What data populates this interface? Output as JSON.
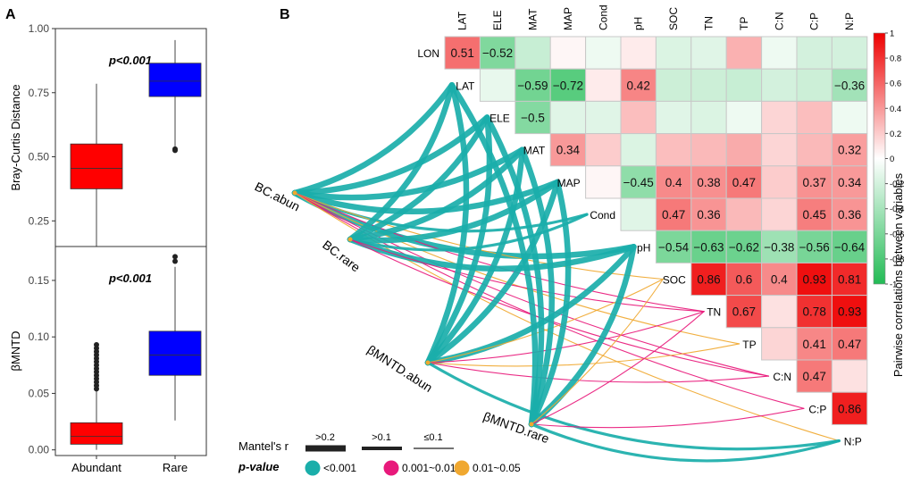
{
  "chart_data": [
    {
      "type": "box",
      "panel": "A",
      "categories": [
        "Abundant",
        "Rare"
      ],
      "colors": [
        "#ff0000",
        "#0000ff"
      ],
      "subplots": [
        {
          "ylabel": "Bray-Curtis Distance",
          "ylim": [
            0.15,
            1.0
          ],
          "yticks": [
            "0.25",
            "0.50",
            "0.75",
            "1.00"
          ],
          "annotation": "p<0.001",
          "boxes": [
            {
              "min": 0.15,
              "q1": 0.375,
              "median": 0.455,
              "q3": 0.55,
              "max": 0.785,
              "outliers": []
            },
            {
              "min": 0.53,
              "q1": 0.735,
              "median": 0.795,
              "q3": 0.865,
              "max": 0.955,
              "outliers": [
                0.525,
                0.53
              ]
            }
          ]
        },
        {
          "ylabel": "βMNTD",
          "ylim": [
            -0.005,
            0.18
          ],
          "yticks": [
            "0.00",
            "0.05",
            "0.10",
            "0.15"
          ],
          "annotation": "p<0.001",
          "boxes": [
            {
              "min": 0.0,
              "q1": 0.005,
              "median": 0.012,
              "q3": 0.024,
              "max": 0.052,
              "outliers": [
                0.054,
                0.057,
                0.06,
                0.063,
                0.066,
                0.069,
                0.072,
                0.075,
                0.078,
                0.081,
                0.084,
                0.087,
                0.09,
                0.093
              ]
            },
            {
              "min": 0.026,
              "q1": 0.066,
              "median": 0.084,
              "q3": 0.105,
              "max": 0.162,
              "outliers": [
                0.167,
                0.171
              ]
            }
          ]
        }
      ]
    },
    {
      "type": "heatmap",
      "panel": "B",
      "title": "Pairwise correlations between variables",
      "variables": [
        "LON",
        "LAT",
        "ELE",
        "MAT",
        "MAP",
        "Cond",
        "pH",
        "SOC",
        "TN",
        "TP",
        "C:N",
        "C:P",
        "N:P"
      ],
      "column_labels": [
        "LAT",
        "ELE",
        "MAT",
        "MAP",
        "Cond",
        "pH",
        "SOC",
        "TN",
        "TP",
        "C:N",
        "C:P",
        "N:P"
      ],
      "rows": [
        {
          "label": "LON",
          "values": [
            0.51,
            -0.52,
            -0.2,
            0.02,
            -0.05,
            0.05,
            -0.12,
            -0.1,
            0.25,
            -0.05,
            -0.15,
            -0.15
          ],
          "shown": [
            "0.51",
            "-0.52",
            "",
            "",
            "",
            "",
            "",
            "",
            "",
            "",
            "",
            ""
          ]
        },
        {
          "label": "LAT",
          "values": [
            -0.07,
            -0.59,
            -0.72,
            0.05,
            0.42,
            -0.18,
            -0.18,
            -0.2,
            -0.15,
            -0.18,
            -0.36
          ],
          "shown": [
            "",
            "-0.59",
            "-0.72",
            "",
            "0.42",
            "",
            "",
            "",
            "",
            "",
            "-0.36"
          ]
        },
        {
          "label": "ELE",
          "values": [
            -0.5,
            -0.1,
            -0.1,
            0.2,
            -0.1,
            -0.12,
            -0.05,
            0.12,
            0.2,
            -0.05
          ],
          "shown": [
            "-0.5",
            "",
            "",
            "",
            "",
            "",
            "",
            "",
            "",
            ""
          ]
        },
        {
          "label": "MAT",
          "values": [
            0.34,
            0.15,
            -0.12,
            0.2,
            0.22,
            0.27,
            0.12,
            0.22,
            0.32
          ],
          "shown": [
            "0.34",
            "",
            "",
            "",
            "",
            "",
            "",
            "",
            "0.32"
          ]
        },
        {
          "label": "MAP",
          "values": [
            0.02,
            -0.45,
            0.4,
            0.38,
            0.47,
            0.15,
            0.37,
            0.34
          ],
          "shown": [
            "",
            "-0.45",
            "0.4",
            "0.38",
            "0.47",
            "",
            "0.37",
            "0.34"
          ]
        },
        {
          "label": "Cond",
          "values": [
            -0.1,
            0.47,
            0.36,
            0.22,
            0.12,
            0.45,
            0.36
          ],
          "shown": [
            "",
            "0.47",
            "0.36",
            "",
            "",
            "0.45",
            "0.36"
          ]
        },
        {
          "label": "pH",
          "values": [
            -0.54,
            -0.63,
            -0.62,
            -0.38,
            -0.56,
            -0.64
          ],
          "shown": [
            "-0.54",
            "-0.63",
            "-0.62",
            "-0.38",
            "-0.56",
            "-0.64"
          ]
        },
        {
          "label": "SOC",
          "values": [
            0.86,
            0.6,
            0.4,
            0.93,
            0.81
          ],
          "shown": [
            "0.86",
            "0.6",
            "0.4",
            "0.93",
            "0.81"
          ]
        },
        {
          "label": "TN",
          "values": [
            0.67,
            0.08,
            0.78,
            0.93
          ],
          "shown": [
            "0.67",
            "",
            "0.78",
            "0.93"
          ]
        },
        {
          "label": "TP",
          "values": [
            0.12,
            0.41,
            0.47
          ],
          "shown": [
            "",
            "0.41",
            "0.47"
          ]
        },
        {
          "label": "C:N",
          "values": [
            0.47,
            0.08
          ],
          "shown": [
            "0.47",
            ""
          ]
        },
        {
          "label": "C:P",
          "values": [
            0.86
          ],
          "shown": [
            "0.86"
          ]
        }
      ],
      "diagonal_labels": [
        "LON",
        "LAT",
        "ELE",
        "MAT",
        "MAP",
        "Cond",
        "pH",
        "SOC",
        "TN",
        "TP",
        "C:N",
        "C:P",
        "N:P"
      ],
      "colorbar": {
        "range": [
          -1,
          1
        ],
        "ticks": [
          "1",
          "0.8",
          "0.6",
          "0.4",
          "0.2",
          "0",
          "-0.2",
          "-0.4",
          "-0.6",
          "-0.8",
          "-1"
        ],
        "colors": {
          "pos": "#ee0000",
          "mid": "#ffffff",
          "neg": "#22bb55"
        }
      },
      "mantel": {
        "nodes": [
          "BC.abun",
          "BC.rare",
          "βMNTD.abun",
          "βMNTD.rare"
        ],
        "legend_title_r": "Mantel's r",
        "legend_title_p": "p-value",
        "r_classes": [
          ">0.2",
          ">0.1",
          "≤0.1"
        ],
        "p_classes": [
          {
            "label": "<0.001",
            "color": "#1aaeaa"
          },
          {
            "label": "0.001~0.01",
            "color": "#e8197b"
          },
          {
            "label": "0.01~0.05",
            "color": "#f0a830"
          }
        ],
        "links": [
          {
            "from": "BC.abun",
            "to": "LAT",
            "r": ">0.2",
            "p": "<0.001"
          },
          {
            "from": "BC.abun",
            "to": "ELE",
            "r": ">0.2",
            "p": "<0.001"
          },
          {
            "from": "BC.abun",
            "to": "MAT",
            "r": ">0.2",
            "p": "<0.001"
          },
          {
            "from": "BC.abun",
            "to": "MAP",
            "r": ">0.2",
            "p": "<0.001"
          },
          {
            "from": "BC.abun",
            "to": "Cond",
            "r": ">0.1",
            "p": "<0.001"
          },
          {
            "from": "BC.abun",
            "to": "pH",
            "r": ">0.2",
            "p": "<0.001"
          },
          {
            "from": "BC.abun",
            "to": "SOC",
            "r": "≤0.1",
            "p": "0.01~0.05"
          },
          {
            "from": "BC.abun",
            "to": "TN",
            "r": "≤0.1",
            "p": "0.001~0.01"
          },
          {
            "from": "BC.abun",
            "to": "TP",
            "r": "≤0.1",
            "p": "0.01~0.05"
          },
          {
            "from": "BC.abun",
            "to": "C:N",
            "r": "≤0.1",
            "p": "0.001~0.01"
          },
          {
            "from": "BC.abun",
            "to": "C:P",
            "r": "≤0.1",
            "p": "0.001~0.01"
          },
          {
            "from": "BC.abun",
            "to": "N:P",
            "r": "≤0.1",
            "p": "0.01~0.05"
          },
          {
            "from": "BC.rare",
            "to": "LAT",
            "r": ">0.2",
            "p": "<0.001"
          },
          {
            "from": "BC.rare",
            "to": "ELE",
            "r": ">0.2",
            "p": "<0.001"
          },
          {
            "from": "BC.rare",
            "to": "MAT",
            "r": ">0.2",
            "p": "<0.001"
          },
          {
            "from": "BC.rare",
            "to": "MAP",
            "r": ">0.2",
            "p": "<0.001"
          },
          {
            "from": "BC.rare",
            "to": "Cond",
            "r": ">0.1",
            "p": "<0.001"
          },
          {
            "from": "BC.rare",
            "to": "pH",
            "r": ">0.2",
            "p": "<0.001"
          },
          {
            "from": "BC.rare",
            "to": "TN",
            "r": "≤0.1",
            "p": "0.001~0.01"
          },
          {
            "from": "BC.rare",
            "to": "C:N",
            "r": "≤0.1",
            "p": "0.001~0.01"
          },
          {
            "from": "βMNTD.abun",
            "to": "LAT",
            "r": ">0.2",
            "p": "<0.001"
          },
          {
            "from": "βMNTD.abun",
            "to": "ELE",
            "r": ">0.2",
            "p": "<0.001"
          },
          {
            "from": "βMNTD.abun",
            "to": "MAT",
            "r": ">0.2",
            "p": "<0.001"
          },
          {
            "from": "βMNTD.abun",
            "to": "MAP",
            "r": ">0.2",
            "p": "<0.001"
          },
          {
            "from": "βMNTD.abun",
            "to": "pH",
            "r": ">0.2",
            "p": "<0.001"
          },
          {
            "from": "βMNTD.abun",
            "to": "SOC",
            "r": "≤0.1",
            "p": "0.01~0.05"
          },
          {
            "from": "βMNTD.abun",
            "to": "TN",
            "r": "≤0.1",
            "p": "0.001~0.01"
          },
          {
            "from": "βMNTD.abun",
            "to": "TP",
            "r": "≤0.1",
            "p": "0.01~0.05"
          },
          {
            "from": "βMNTD.abun",
            "to": "C:N",
            "r": "≤0.1",
            "p": "0.001~0.01"
          },
          {
            "from": "βMNTD.abun",
            "to": "N:P",
            "r": ">0.1",
            "p": "<0.001"
          },
          {
            "from": "βMNTD.rare",
            "to": "LAT",
            "r": ">0.2",
            "p": "<0.001"
          },
          {
            "from": "βMNTD.rare",
            "to": "ELE",
            "r": ">0.2",
            "p": "<0.001"
          },
          {
            "from": "βMNTD.rare",
            "to": "MAT",
            "r": ">0.2",
            "p": "<0.001"
          },
          {
            "from": "βMNTD.rare",
            "to": "MAP",
            "r": ">0.2",
            "p": "<0.001"
          },
          {
            "from": "βMNTD.rare",
            "to": "pH",
            "r": ">0.2",
            "p": "<0.001"
          },
          {
            "from": "βMNTD.rare",
            "to": "SOC",
            "r": "≤0.1",
            "p": "0.01~0.05"
          },
          {
            "from": "βMNTD.rare",
            "to": "TN",
            "r": "≤0.1",
            "p": "0.001~0.01"
          },
          {
            "from": "βMNTD.rare",
            "to": "C:P",
            "r": "≤0.1",
            "p": "0.001~0.01"
          },
          {
            "from": "βMNTD.rare",
            "to": "N:P",
            "r": ">0.1",
            "p": "<0.001"
          }
        ]
      }
    }
  ]
}
